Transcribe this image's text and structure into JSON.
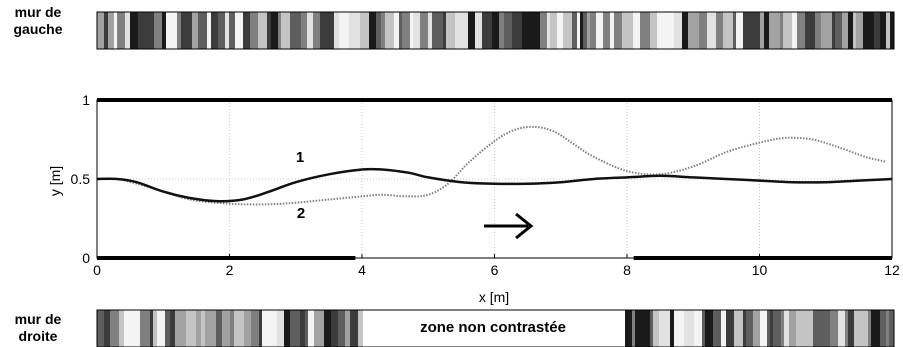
{
  "walls": {
    "left_label": "mur de gauche",
    "right_label": "mur de droite",
    "no_contrast_zone": "zone non contrastée"
  },
  "chart_data": {
    "type": "line",
    "title": "",
    "xlabel": "x [m]",
    "ylabel": "y [m]",
    "xlim": [
      0,
      12
    ],
    "ylim": [
      0,
      1
    ],
    "xticks": [
      0,
      2,
      4,
      6,
      8,
      10,
      12
    ],
    "yticks": [
      0,
      0.5,
      1
    ],
    "grid": true,
    "series": [
      {
        "name": "1",
        "style": "solid",
        "color": "#111111",
        "x": [
          0,
          0.3,
          0.6,
          1.0,
          1.4,
          1.8,
          2.2,
          2.6,
          3.0,
          3.5,
          4.0,
          4.3,
          4.7,
          5.0,
          5.5,
          6.0,
          6.5,
          7.0,
          7.5,
          8.0,
          8.5,
          9.0,
          9.5,
          10.0,
          10.5,
          11.0,
          11.5,
          12.0
        ],
        "y": [
          0.5,
          0.5,
          0.48,
          0.42,
          0.38,
          0.36,
          0.37,
          0.42,
          0.48,
          0.53,
          0.56,
          0.56,
          0.54,
          0.51,
          0.48,
          0.47,
          0.47,
          0.48,
          0.5,
          0.51,
          0.52,
          0.51,
          0.5,
          0.49,
          0.48,
          0.48,
          0.49,
          0.5
        ]
      },
      {
        "name": "2",
        "style": "dotted",
        "color": "#808080",
        "x": [
          0,
          0.3,
          0.6,
          1.0,
          1.4,
          1.8,
          2.2,
          2.6,
          3.0,
          3.5,
          4.0,
          4.3,
          4.7,
          5.0,
          5.3,
          5.6,
          6.0,
          6.3,
          6.6,
          6.9,
          7.2,
          7.5,
          8.0,
          8.5,
          9.0,
          9.5,
          10.0,
          10.4,
          10.8,
          11.2,
          11.6,
          11.9
        ],
        "y": [
          0.5,
          0.5,
          0.47,
          0.42,
          0.37,
          0.35,
          0.34,
          0.34,
          0.35,
          0.37,
          0.39,
          0.4,
          0.39,
          0.4,
          0.47,
          0.6,
          0.74,
          0.81,
          0.83,
          0.8,
          0.72,
          0.64,
          0.55,
          0.53,
          0.58,
          0.67,
          0.73,
          0.76,
          0.75,
          0.7,
          0.64,
          0.61
        ]
      }
    ],
    "annotations": [
      "1",
      "2"
    ],
    "direction_arrow": "→",
    "walls_y": [
      0,
      1
    ],
    "bottom_wall_x_segments": [
      [
        0,
        3.9
      ],
      [
        8.1,
        12
      ]
    ],
    "top_wall_x_segments": [
      [
        0,
        12
      ]
    ]
  }
}
